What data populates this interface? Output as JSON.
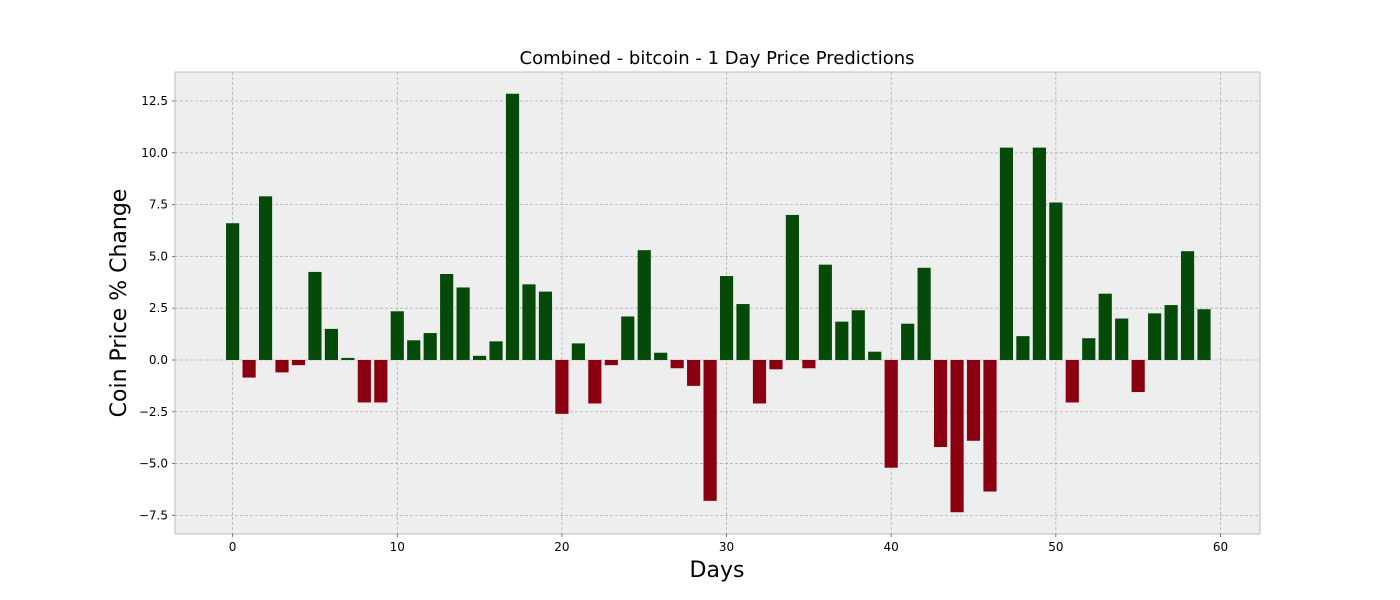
{
  "chart_data": {
    "type": "bar",
    "title": "Combined - bitcoin - 1 Day Price Predictions",
    "xlabel": "Days",
    "ylabel": "Coin Price % Change",
    "xlim": [
      -3.5,
      62.4
    ],
    "ylim": [
      -8.4,
      13.9
    ],
    "xticks": [
      0,
      10,
      20,
      30,
      40,
      50,
      60
    ],
    "yticks": [
      -7.5,
      -5.0,
      -2.5,
      0.0,
      2.5,
      5.0,
      7.5,
      10.0,
      12.5
    ],
    "ytick_labels": [
      "−7.5",
      "−5.0",
      "−2.5",
      "0.0",
      "2.5",
      "5.0",
      "7.5",
      "10.0",
      "12.5"
    ],
    "grid": true,
    "positive_color": "#064a0a",
    "negative_color": "#8b0010",
    "background_color": "#eeeeee",
    "x": [
      0,
      1,
      2,
      3,
      4,
      5,
      6,
      7,
      8,
      9,
      10,
      11,
      12,
      13,
      14,
      15,
      16,
      17,
      18,
      19,
      20,
      21,
      22,
      23,
      24,
      25,
      26,
      27,
      28,
      29,
      30,
      31,
      32,
      33,
      34,
      35,
      36,
      37,
      38,
      39,
      40,
      41,
      42,
      43,
      44,
      45,
      46,
      47,
      48,
      49,
      50,
      51,
      52,
      53,
      54,
      55,
      56,
      57,
      58,
      59
    ],
    "values": [
      6.6,
      -0.85,
      7.9,
      -0.6,
      -0.25,
      4.25,
      1.5,
      0.1,
      -2.05,
      -2.05,
      2.35,
      0.95,
      1.3,
      4.15,
      3.5,
      0.2,
      0.9,
      12.85,
      3.65,
      3.3,
      -2.6,
      0.8,
      -2.1,
      -0.25,
      2.1,
      5.3,
      0.35,
      -0.4,
      -1.25,
      -6.8,
      4.05,
      2.7,
      -2.1,
      -0.45,
      7.0,
      -0.4,
      4.6,
      1.85,
      2.4,
      0.4,
      -5.2,
      1.75,
      4.45,
      -4.2,
      -7.35,
      -3.9,
      -6.35,
      10.25,
      1.15,
      10.25,
      7.6,
      -2.05,
      1.05,
      3.2,
      2.0,
      -1.55,
      2.25,
      2.65,
      5.25,
      2.45
    ]
  }
}
